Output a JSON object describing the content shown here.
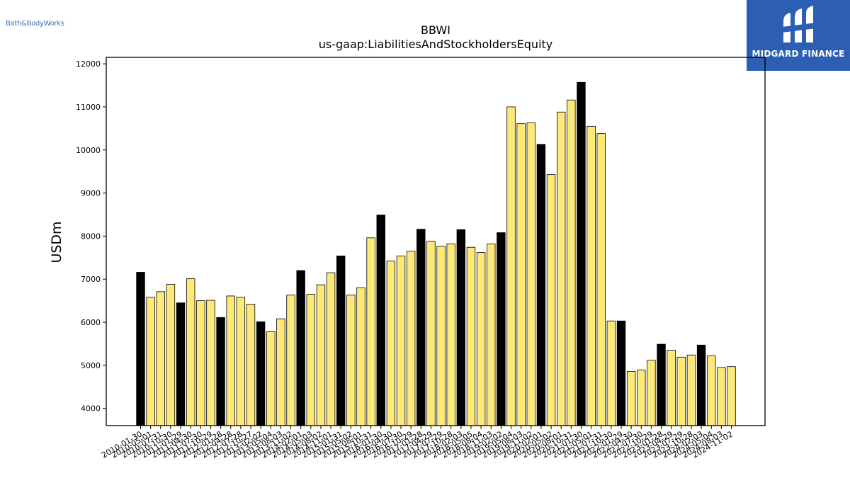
{
  "logos": {
    "left_text": "Bath&BodyWorks",
    "right_text": "MIDGARD FINANCE"
  },
  "colors": {
    "bar_highlight": "#000000",
    "bar_default": "#fde97a",
    "bar_edge": "#000000"
  },
  "chart_data": {
    "type": "bar",
    "title": "BBWI",
    "subtitle": "us-gaap:LiabilitiesAndStockholdersEquity",
    "ylabel": "USDm",
    "xlabel": "",
    "ylim": [
      3600,
      12150
    ],
    "yticks": [
      4000,
      5000,
      6000,
      7000,
      8000,
      9000,
      10000,
      11000,
      12000
    ],
    "grid": false,
    "categories": [
      "2010-01-30",
      "2010-05-01",
      "2010-07-31",
      "2010-10-30",
      "2011-01-29",
      "2011-04-30",
      "2011-07-30",
      "2011-10-29",
      "2012-01-28",
      "2012-04-28",
      "2012-07-28",
      "2012-10-27",
      "2013-02-02",
      "2013-05-04",
      "2013-08-03",
      "2013-11-02",
      "2014-02-01",
      "2014-05-03",
      "2014-08-02",
      "2014-11-01",
      "2015-01-31",
      "2015-05-02",
      "2015-08-01",
      "2015-10-31",
      "2016-01-30",
      "2016-04-30",
      "2016-07-30",
      "2016-10-29",
      "2017-01-28",
      "2017-04-29",
      "2017-07-29",
      "2017-10-28",
      "2018-02-03",
      "2018-05-05",
      "2018-08-04",
      "2018-11-03",
      "2019-02-02",
      "2019-05-04",
      "2019-08-03",
      "2019-11-02",
      "2020-02-01",
      "2020-05-02",
      "2020-08-01",
      "2020-10-31",
      "2021-01-30",
      "2021-05-01",
      "2021-07-31",
      "2021-10-30",
      "2022-01-29",
      "2022-04-30",
      "2022-07-30",
      "2022-10-29",
      "2023-01-28",
      "2023-04-29",
      "2023-07-29",
      "2023-10-28",
      "2024-02-03",
      "2024-05-04",
      "2024-08-03",
      "2024-11-02"
    ],
    "values": [
      7160,
      6580,
      6710,
      6880,
      6450,
      7010,
      6500,
      6510,
      6110,
      6610,
      6580,
      6420,
      6010,
      5780,
      6080,
      6630,
      7200,
      6650,
      6870,
      7150,
      7540,
      6630,
      6800,
      7960,
      8490,
      7420,
      7540,
      7650,
      8160,
      7880,
      7760,
      7820,
      8150,
      7740,
      7620,
      7820,
      8080,
      11000,
      10610,
      10630,
      10130,
      9430,
      10880,
      11160,
      11570,
      10550,
      10380,
      6030,
      6030,
      4860,
      4890,
      5120,
      5490,
      5350,
      5190,
      5240,
      5470,
      5220,
      4950,
      4970
    ],
    "highlighted": [
      true,
      false,
      false,
      false,
      true,
      false,
      false,
      false,
      true,
      false,
      false,
      false,
      true,
      false,
      false,
      false,
      true,
      false,
      false,
      false,
      true,
      false,
      false,
      false,
      true,
      false,
      false,
      false,
      true,
      false,
      false,
      false,
      true,
      false,
      false,
      false,
      true,
      false,
      false,
      false,
      true,
      false,
      false,
      false,
      true,
      false,
      false,
      false,
      true,
      false,
      false,
      false,
      true,
      false,
      false,
      false,
      true,
      false,
      false,
      false
    ]
  }
}
